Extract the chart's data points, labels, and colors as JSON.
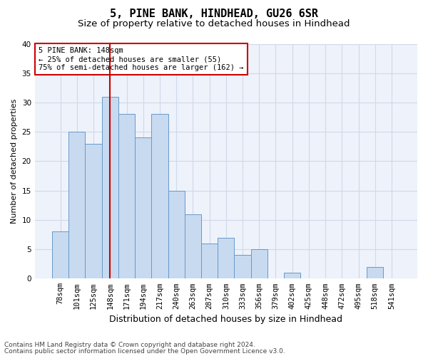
{
  "title1": "5, PINE BANK, HINDHEAD, GU26 6SR",
  "title2": "Size of property relative to detached houses in Hindhead",
  "xlabel": "Distribution of detached houses by size in Hindhead",
  "ylabel": "Number of detached properties",
  "categories": [
    "78sqm",
    "101sqm",
    "125sqm",
    "148sqm",
    "171sqm",
    "194sqm",
    "217sqm",
    "240sqm",
    "263sqm",
    "287sqm",
    "310sqm",
    "333sqm",
    "356sqm",
    "379sqm",
    "402sqm",
    "425sqm",
    "448sqm",
    "472sqm",
    "495sqm",
    "518sqm",
    "541sqm"
  ],
  "values": [
    8,
    25,
    23,
    31,
    28,
    24,
    28,
    15,
    11,
    6,
    7,
    4,
    5,
    0,
    1,
    0,
    0,
    0,
    0,
    2,
    0
  ],
  "bar_color": "#c8daf0",
  "bar_edge_color": "#6699cc",
  "highlight_index": 3,
  "highlight_line_color": "#cc0000",
  "ylim": [
    0,
    40
  ],
  "yticks": [
    0,
    5,
    10,
    15,
    20,
    25,
    30,
    35,
    40
  ],
  "annotation_line1": "5 PINE BANK: 148sqm",
  "annotation_line2": "← 25% of detached houses are smaller (55)",
  "annotation_line3": "75% of semi-detached houses are larger (162) →",
  "annotation_box_color": "#cc0000",
  "footnote1": "Contains HM Land Registry data © Crown copyright and database right 2024.",
  "footnote2": "Contains public sector information licensed under the Open Government Licence v3.0.",
  "title1_fontsize": 11,
  "title2_fontsize": 9.5,
  "xlabel_fontsize": 9,
  "ylabel_fontsize": 8,
  "tick_fontsize": 7.5,
  "annotation_fontsize": 7.5,
  "footnote_fontsize": 6.5,
  "grid_color": "#d0d8e8",
  "bg_color": "#eef2fa"
}
